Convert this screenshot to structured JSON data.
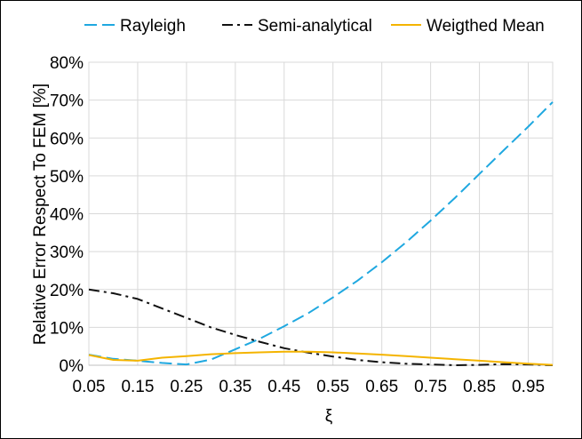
{
  "chart_data": {
    "type": "line",
    "title": "",
    "xlabel": "ξ",
    "ylabel": "Relative Error Respect To FEM [%]",
    "xlim": [
      0.05,
      1.0
    ],
    "ylim": [
      0,
      80
    ],
    "x_ticks": [
      "0.05",
      "0.15",
      "0.25",
      "0.35",
      "0.45",
      "0.55",
      "0.65",
      "0.75",
      "0.85",
      "0.95"
    ],
    "x_tick_values": [
      0.05,
      0.15,
      0.25,
      0.35,
      0.45,
      0.55,
      0.65,
      0.75,
      0.85,
      0.95
    ],
    "y_ticks": [
      "0%",
      "10%",
      "20%",
      "30%",
      "40%",
      "50%",
      "60%",
      "70%",
      "80%"
    ],
    "y_tick_values": [
      0,
      10,
      20,
      30,
      40,
      50,
      60,
      70,
      80
    ],
    "grid": true,
    "legend_position": "top",
    "series": [
      {
        "name": "Rayleigh",
        "color": "#1fa8e0",
        "dash": "dashed",
        "x": [
          0.05,
          0.1,
          0.15,
          0.2,
          0.25,
          0.3,
          0.35,
          0.4,
          0.45,
          0.5,
          0.55,
          0.6,
          0.65,
          0.7,
          0.75,
          0.8,
          0.85,
          0.9,
          0.95,
          1.0
        ],
        "y": [
          2.8,
          1.7,
          1.2,
          0.6,
          0.2,
          1.5,
          4.2,
          7.0,
          10.3,
          13.8,
          17.9,
          22.3,
          27.2,
          32.5,
          38.2,
          44.2,
          50.5,
          56.8,
          63.0,
          69.5
        ]
      },
      {
        "name": "Semi-analytical",
        "color": "#111111",
        "dash": "dashdot",
        "x": [
          0.05,
          0.1,
          0.15,
          0.2,
          0.25,
          0.3,
          0.35,
          0.4,
          0.45,
          0.5,
          0.55,
          0.6,
          0.65,
          0.7,
          0.75,
          0.8,
          0.85,
          0.9,
          0.95,
          1.0
        ],
        "y": [
          20.0,
          19.0,
          17.5,
          15.0,
          12.5,
          10.0,
          8.0,
          6.2,
          4.5,
          3.3,
          2.3,
          1.4,
          0.8,
          0.4,
          0.2,
          0.0,
          0.1,
          0.3,
          0.2,
          0.0
        ]
      },
      {
        "name": "Weigthed Mean",
        "color": "#f4b400",
        "dash": "solid",
        "x": [
          0.05,
          0.1,
          0.15,
          0.2,
          0.25,
          0.3,
          0.35,
          0.4,
          0.45,
          0.5,
          0.55,
          0.6,
          0.65,
          0.7,
          0.75,
          0.8,
          0.85,
          0.9,
          0.95,
          1.0
        ],
        "y": [
          2.7,
          1.4,
          1.2,
          2.0,
          2.4,
          2.9,
          3.2,
          3.4,
          3.6,
          3.6,
          3.4,
          3.1,
          2.8,
          2.4,
          2.0,
          1.6,
          1.2,
          0.8,
          0.4,
          0.1
        ]
      }
    ]
  }
}
